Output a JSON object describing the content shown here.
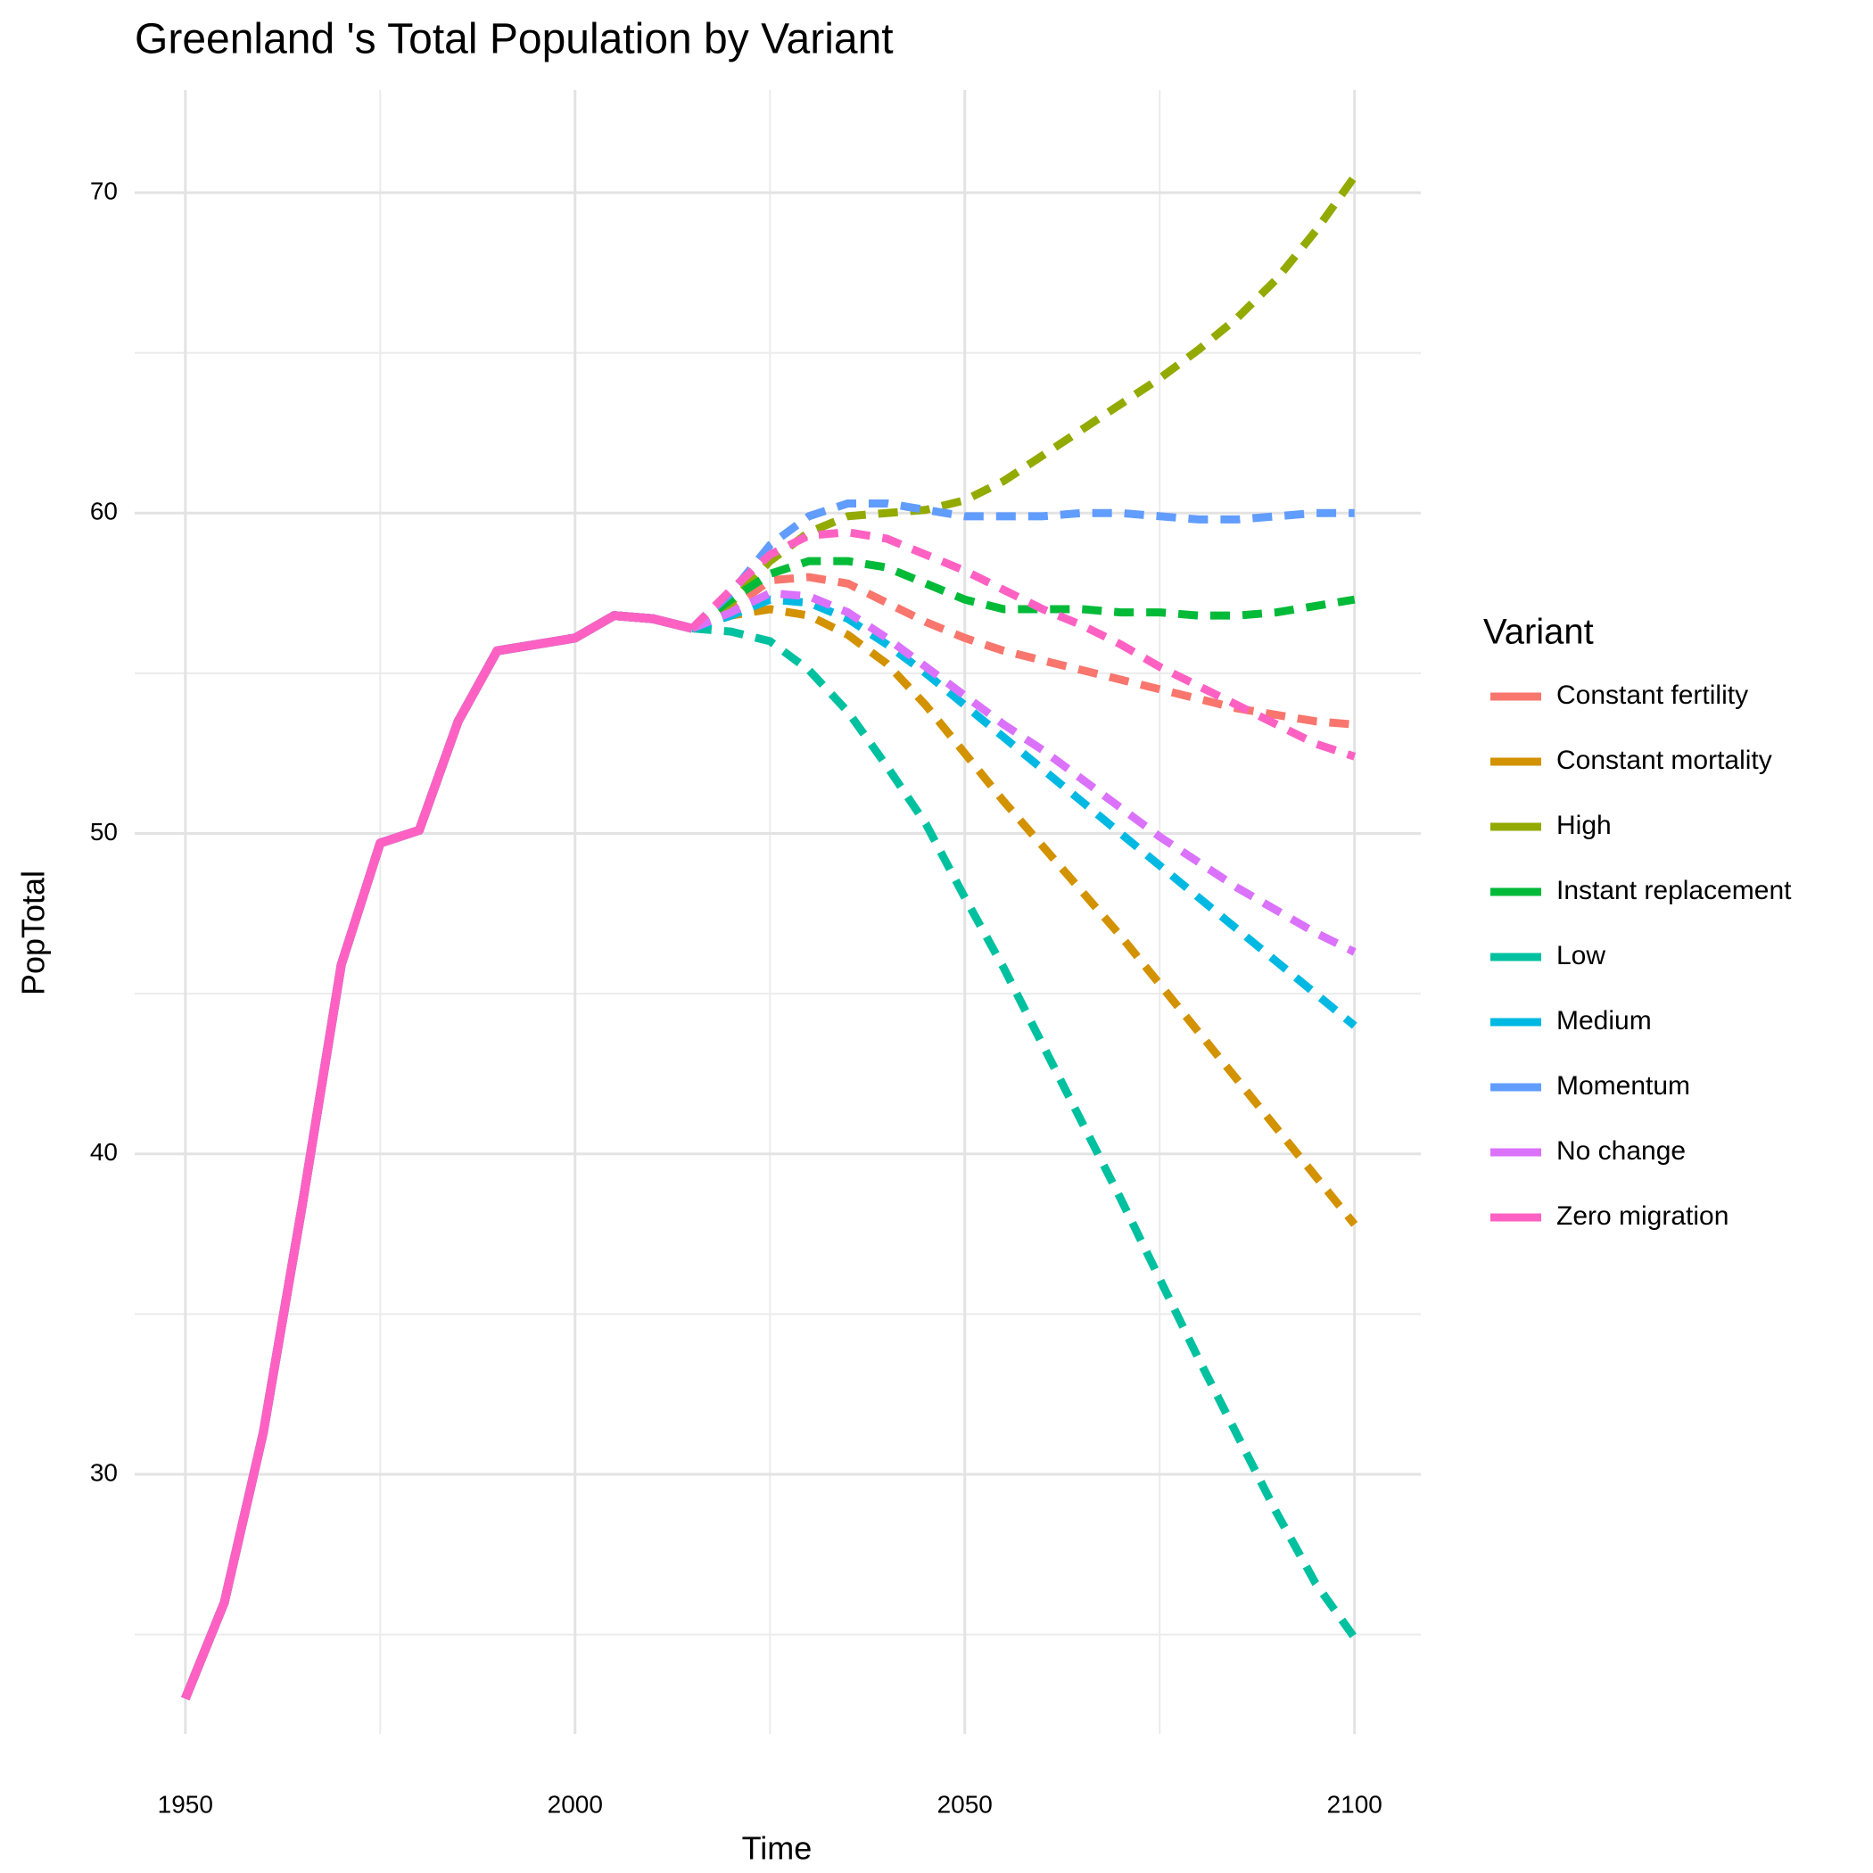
{
  "chart_data": {
    "type": "line",
    "title": "Greenland 's Total Population by Variant",
    "x_label": "Time",
    "y_label": "PopTotal",
    "legend_title": "Variant",
    "legend_position": "right",
    "x": [
      1950,
      1955,
      1960,
      1965,
      1970,
      1975,
      1980,
      1985,
      1990,
      1995,
      2000,
      2005,
      2010,
      2015,
      2020,
      2025,
      2030,
      2035,
      2040,
      2045,
      2050,
      2055,
      2060,
      2065,
      2070,
      2075,
      2080,
      2085,
      2090,
      2095,
      2100
    ],
    "dashed_after": 2015,
    "series": [
      {
        "name": "Constant fertility",
        "color": "#F8766D",
        "values": [
          23.0,
          26.0,
          31.3,
          38.4,
          45.9,
          49.7,
          50.1,
          53.5,
          55.7,
          55.9,
          56.1,
          56.8,
          56.7,
          56.4,
          57.0,
          57.9,
          58.0,
          57.8,
          57.2,
          56.6,
          56.1,
          55.7,
          55.4,
          55.1,
          54.8,
          54.5,
          54.2,
          53.9,
          53.7,
          53.5,
          53.4
        ]
      },
      {
        "name": "Constant mortality",
        "color": "#D39200",
        "values": [
          23.0,
          26.0,
          31.3,
          38.4,
          45.9,
          49.7,
          50.1,
          53.5,
          55.7,
          55.9,
          56.1,
          56.8,
          56.7,
          56.4,
          56.8,
          57.0,
          56.8,
          56.2,
          55.3,
          54.0,
          52.5,
          51.0,
          49.6,
          48.2,
          46.8,
          45.3,
          43.8,
          42.3,
          40.8,
          39.3,
          37.8
        ]
      },
      {
        "name": "High",
        "color": "#93AA00",
        "values": [
          23.0,
          26.0,
          31.3,
          38.4,
          45.9,
          49.7,
          50.1,
          53.5,
          55.7,
          55.9,
          56.1,
          56.8,
          56.7,
          56.4,
          57.2,
          58.5,
          59.4,
          59.9,
          60.0,
          60.1,
          60.4,
          61.0,
          61.8,
          62.6,
          63.4,
          64.2,
          65.1,
          66.1,
          67.3,
          68.8,
          70.5
        ]
      },
      {
        "name": "Instant replacement",
        "color": "#00BA38",
        "values": [
          23.0,
          26.0,
          31.3,
          38.4,
          45.9,
          49.7,
          50.1,
          53.5,
          55.7,
          55.9,
          56.1,
          56.8,
          56.7,
          56.4,
          57.3,
          58.1,
          58.5,
          58.5,
          58.3,
          57.8,
          57.3,
          57.0,
          57.0,
          57.0,
          56.9,
          56.9,
          56.8,
          56.8,
          56.9,
          57.1,
          57.3
        ]
      },
      {
        "name": "Low",
        "color": "#00C19F",
        "values": [
          23.0,
          26.0,
          31.3,
          38.4,
          45.9,
          49.7,
          50.1,
          53.5,
          55.7,
          55.9,
          56.1,
          56.8,
          56.7,
          56.4,
          56.3,
          56.0,
          55.1,
          53.8,
          52.1,
          50.3,
          48.0,
          45.8,
          43.4,
          41.0,
          38.6,
          36.1,
          33.6,
          31.2,
          28.8,
          26.6,
          24.9
        ]
      },
      {
        "name": "Medium",
        "color": "#00B9E3",
        "values": [
          23.0,
          26.0,
          31.3,
          38.4,
          45.9,
          49.7,
          50.1,
          53.5,
          55.7,
          55.9,
          56.1,
          56.8,
          56.7,
          56.4,
          56.8,
          57.3,
          57.2,
          56.7,
          55.9,
          55.0,
          54.0,
          53.0,
          52.0,
          51.0,
          50.0,
          49.0,
          48.0,
          47.0,
          46.0,
          45.0,
          44.0
        ]
      },
      {
        "name": "Momentum",
        "color": "#619CFF",
        "values": [
          23.0,
          26.0,
          31.3,
          38.4,
          45.9,
          49.7,
          50.1,
          53.5,
          55.7,
          55.9,
          56.1,
          56.8,
          56.7,
          56.4,
          57.5,
          59.0,
          59.9,
          60.3,
          60.3,
          60.1,
          59.9,
          59.9,
          59.9,
          60.0,
          60.0,
          59.9,
          59.8,
          59.8,
          59.9,
          60.0,
          60.0
        ]
      },
      {
        "name": "No change",
        "color": "#DB72FB",
        "values": [
          23.0,
          26.0,
          31.3,
          38.4,
          45.9,
          49.7,
          50.1,
          53.5,
          55.7,
          55.9,
          56.1,
          56.8,
          56.7,
          56.4,
          56.9,
          57.5,
          57.4,
          56.9,
          56.1,
          55.2,
          54.3,
          53.4,
          52.6,
          51.7,
          50.8,
          49.9,
          49.1,
          48.3,
          47.6,
          46.9,
          46.3
        ]
      },
      {
        "name": "Zero migration",
        "color": "#FF61C3",
        "values": [
          23.0,
          26.0,
          31.3,
          38.4,
          45.9,
          49.7,
          50.1,
          53.5,
          55.7,
          55.9,
          56.1,
          56.8,
          56.7,
          56.4,
          57.6,
          58.7,
          59.3,
          59.4,
          59.2,
          58.7,
          58.2,
          57.6,
          57.0,
          56.5,
          55.9,
          55.2,
          54.6,
          54.0,
          53.4,
          52.8,
          52.4
        ]
      }
    ],
    "xlim": [
      1943.5,
      2108.5
    ],
    "xticks": [
      1950,
      2000,
      2050,
      2100
    ],
    "xminor": [
      1975,
      2025,
      2075
    ],
    "ylim": [
      21.9,
      73.2
    ],
    "yticks": [
      30,
      40,
      50,
      60,
      70
    ],
    "yminor": [
      25,
      35,
      45,
      55,
      65
    ],
    "grid": true
  }
}
